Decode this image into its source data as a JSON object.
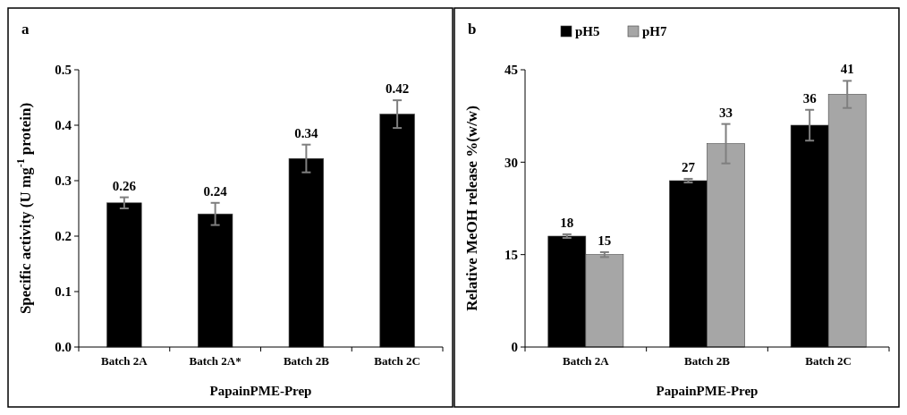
{
  "chart_data": [
    {
      "type": "bar",
      "title": "a",
      "xlabel": "PapainPME-Prep",
      "ylabel": "Specific activity (U mg$^{-1}$ protein)",
      "categories": [
        "Batch 2A",
        "Batch 2A*",
        "Batch 2B",
        "Batch 2C"
      ],
      "values": [
        0.26,
        0.24,
        0.34,
        0.42
      ],
      "errors": [
        0.01,
        0.02,
        0.025,
        0.025
      ],
      "color": "#000000",
      "ylim": [
        0,
        0.5
      ],
      "yticks": [
        {
          "value": 0,
          "label": "0.0"
        },
        0.1,
        0.2,
        0.3,
        0.4,
        0.5
      ],
      "data_labels": true,
      "grid": false,
      "legend": false
    },
    {
      "type": "bar",
      "title": "b",
      "xlabel": "PapainPME-Prep",
      "ylabel": "Relative MeOH release %(w/w)",
      "categories": [
        "Batch 2A",
        "Batch 2B",
        "Batch 2C"
      ],
      "series": [
        {
          "name": "pH5",
          "color": "#000000",
          "values": [
            18,
            27,
            36
          ],
          "errors": [
            0.3,
            0.3,
            2.5
          ]
        },
        {
          "name": "pH7",
          "color": "#a6a6a6",
          "values": [
            15,
            33,
            41
          ],
          "errors": [
            0.4,
            3.2,
            2.2
          ]
        }
      ],
      "ylim": [
        0,
        45
      ],
      "yticks": [
        0,
        15,
        30,
        45
      ],
      "data_labels": true,
      "grid": false,
      "legend": "top"
    }
  ]
}
